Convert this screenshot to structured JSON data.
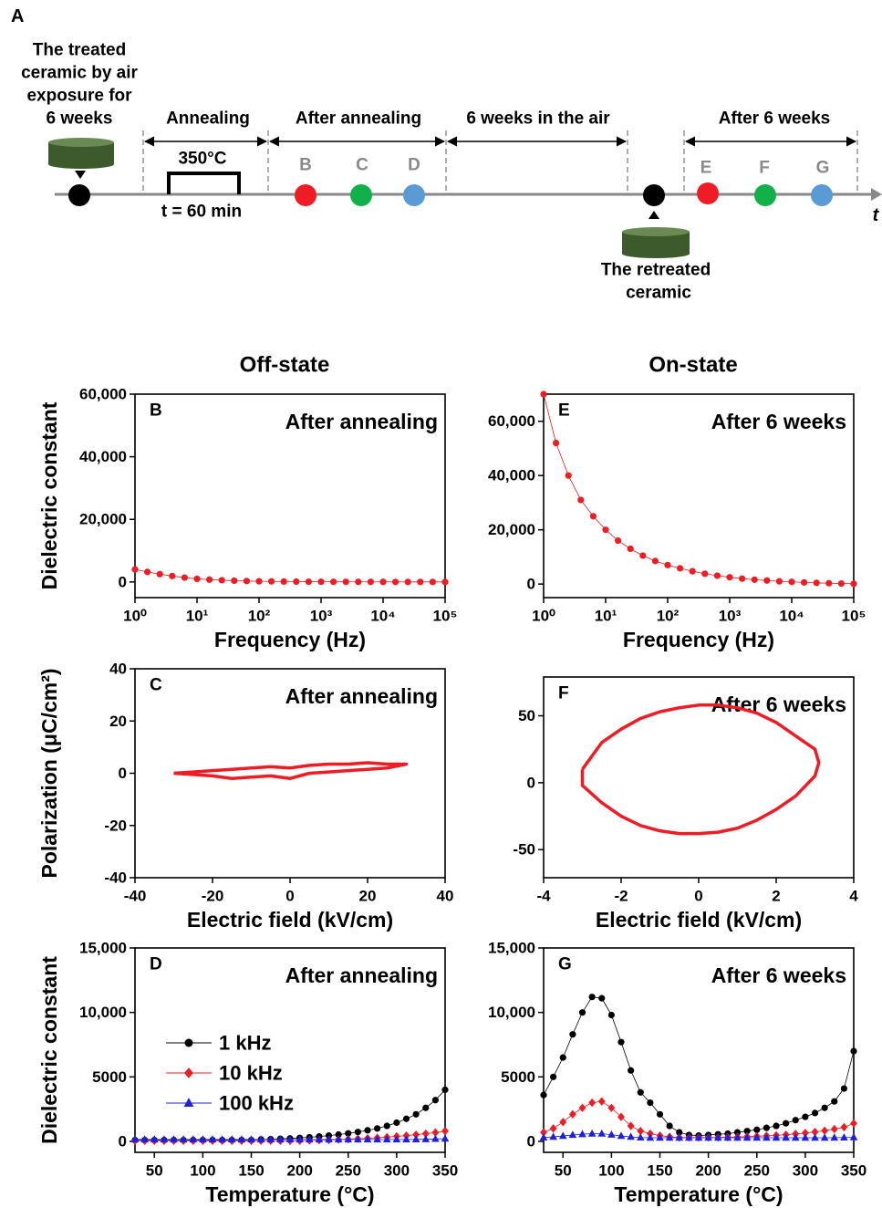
{
  "diagram": {
    "label": "A",
    "initial_sample": [
      "The treated",
      "ceramic by air",
      "exposure for",
      "6 weeks"
    ],
    "stages": [
      "Annealing",
      "After annealing",
      "6 weeks in the air",
      "After 6 weeks"
    ],
    "annealing_temperature": "350°C",
    "annealing_time": "t = 60 min",
    "points": [
      "B",
      "C",
      "D",
      "E",
      "F",
      "G"
    ],
    "time_axis": "t",
    "retreated_sample": [
      "The retreated",
      "ceramic"
    ]
  },
  "columns": [
    "Off-state",
    "On-state"
  ],
  "chart_data": [
    {
      "type": "line",
      "panel": "B",
      "title": "After annealing",
      "xlabel": "Frequency (Hz)",
      "ylabel": "Dielectric constant",
      "xlog": true,
      "xlim": [
        1,
        100000
      ],
      "ylim": [
        -5000,
        60000
      ],
      "xticks": [
        {
          "value": 1,
          "label": "10⁰"
        },
        {
          "value": 10,
          "label": "10¹"
        },
        {
          "value": 100,
          "label": "10²"
        },
        {
          "value": 1000,
          "label": "10³"
        },
        {
          "value": 10000,
          "label": "10⁴"
        },
        {
          "value": 100000,
          "label": "10⁵"
        }
      ],
      "yticks": [
        0,
        {
          "value": 20000,
          "label": "20,000"
        },
        {
          "value": 40000,
          "label": "40,000"
        },
        {
          "value": 60000,
          "label": "60,000"
        }
      ],
      "x": [
        1,
        1.585,
        2.512,
        3.981,
        6.31,
        10,
        15.85,
        25.12,
        39.81,
        63.1,
        100,
        158.5,
        251.2,
        398.1,
        631,
        1000,
        1585,
        2512,
        3981,
        6310,
        10000,
        15850,
        25120,
        39810,
        63100,
        100000
      ],
      "series": [
        {
          "color": "#ee1c24",
          "marker": "circle",
          "line_width": 0.8,
          "values": [
            4000,
            3200,
            2500,
            1900,
            1400,
            1000,
            750,
            550,
            400,
            300,
            220,
            170,
            130,
            100,
            80,
            60,
            50,
            40,
            30,
            25,
            20,
            15,
            10,
            10,
            5,
            5
          ]
        }
      ]
    },
    {
      "type": "line",
      "panel": "C",
      "title": "After annealing",
      "xlabel": "Electric field (kV/cm)",
      "ylabel": "Polarization (μC/cm²)",
      "xlim": [
        -40,
        40
      ],
      "ylim": [
        -40,
        40
      ],
      "xticks": [
        -40,
        -20,
        0,
        20,
        40
      ],
      "yticks": [
        -40,
        -20,
        0,
        20,
        40
      ],
      "x": [
        -30,
        -25,
        -20,
        -15,
        -10,
        -5,
        0,
        5,
        10,
        15,
        20,
        25,
        30,
        25,
        20,
        15,
        10,
        5,
        0,
        -5,
        -10,
        -15,
        -20,
        -25,
        -30
      ],
      "series": [
        {
          "color": "#ee1c24",
          "marker": "none",
          "line_width": 3.5,
          "values": [
            0,
            0.5,
            1,
            1.5,
            2,
            2.5,
            2,
            3,
            3.5,
            3.5,
            4,
            3.5,
            3.5,
            2,
            1.5,
            1,
            0.5,
            0,
            -2,
            -1,
            -1.5,
            -2,
            -1,
            -0.5,
            0
          ]
        }
      ]
    },
    {
      "type": "line",
      "panel": "D",
      "title": "After annealing",
      "xlabel": "Temperature (°C)",
      "ylabel": "Dielectric constant",
      "legend": true,
      "xlim": [
        30,
        350
      ],
      "ylim": [
        -850,
        15000
      ],
      "xticks": [
        50,
        100,
        150,
        200,
        250,
        300,
        350
      ],
      "yticks": [
        0,
        5000,
        {
          "value": 10000,
          "label": "10,000"
        },
        {
          "value": 15000,
          "label": "15,000"
        }
      ],
      "x": [
        30,
        40,
        50,
        60,
        70,
        80,
        90,
        100,
        110,
        120,
        130,
        140,
        150,
        160,
        170,
        180,
        190,
        200,
        210,
        220,
        230,
        240,
        250,
        260,
        270,
        280,
        290,
        300,
        310,
        320,
        330,
        340,
        350
      ],
      "series": [
        {
          "name": "1 kHz",
          "color": "#000000",
          "marker": "circle",
          "line_width": 0.8,
          "values": [
            100,
            100,
            100,
            100,
            100,
            100,
            100,
            100,
            100,
            100,
            100,
            100,
            100,
            150,
            170,
            200,
            230,
            270,
            320,
            380,
            450,
            530,
            620,
            730,
            860,
            1000,
            1200,
            1450,
            1750,
            2100,
            2600,
            3200,
            4000
          ]
        },
        {
          "name": "10 kHz",
          "color": "#ee1c24",
          "marker": "diamond",
          "line_width": 0.8,
          "values": [
            50,
            50,
            50,
            50,
            50,
            50,
            50,
            50,
            50,
            50,
            50,
            50,
            50,
            50,
            50,
            50,
            50,
            50,
            70,
            90,
            110,
            140,
            170,
            200,
            240,
            280,
            330,
            390,
            450,
            520,
            600,
            690,
            800
          ]
        },
        {
          "name": "100 kHz",
          "color": "#1f1fe0",
          "marker": "triangle",
          "line_width": 0.8,
          "values": [
            150,
            150,
            150,
            150,
            150,
            150,
            150,
            150,
            150,
            150,
            150,
            150,
            150,
            150,
            150,
            150,
            150,
            150,
            150,
            150,
            150,
            150,
            150,
            150,
            150,
            150,
            150,
            150,
            150,
            160,
            170,
            190,
            210
          ]
        }
      ]
    },
    {
      "type": "line",
      "panel": "E",
      "title": "After 6 weeks",
      "xlabel": "Frequency (Hz)",
      "xlog": true,
      "xlim": [
        1,
        100000
      ],
      "ylim": [
        -5000,
        70000
      ],
      "xticks": [
        {
          "value": 1,
          "label": "10⁰"
        },
        {
          "value": 10,
          "label": "10¹"
        },
        {
          "value": 100,
          "label": "10²"
        },
        {
          "value": 1000,
          "label": "10³"
        },
        {
          "value": 10000,
          "label": "10⁴"
        },
        {
          "value": 100000,
          "label": "10⁵"
        }
      ],
      "yticks": [
        0,
        {
          "value": 20000,
          "label": "20,000"
        },
        {
          "value": 40000,
          "label": "40,000"
        },
        {
          "value": 60000,
          "label": "60,000"
        }
      ],
      "x": [
        1,
        1.585,
        2.512,
        3.981,
        6.31,
        10,
        15.85,
        25.12,
        39.81,
        63.1,
        100,
        158.5,
        251.2,
        398.1,
        631,
        1000,
        1585,
        2512,
        3981,
        6310,
        10000,
        15850,
        25120,
        39810,
        63100,
        100000
      ],
      "series": [
        {
          "color": "#ee1c24",
          "marker": "circle",
          "line_width": 0.8,
          "values": [
            70000,
            52000,
            40000,
            31000,
            25000,
            20000,
            16000,
            13000,
            10500,
            8500,
            7000,
            5800,
            4700,
            3800,
            3100,
            2500,
            2000,
            1600,
            1300,
            1000,
            800,
            600,
            450,
            300,
            200,
            100
          ]
        }
      ]
    },
    {
      "type": "line",
      "panel": "F",
      "title": "After 6 weeks",
      "xlabel": "Electric field (kV/cm)",
      "xlim": [
        -4,
        4
      ],
      "ylim": [
        -71,
        79
      ],
      "xticks": [
        -4,
        -2,
        0,
        2,
        4
      ],
      "yticks": [
        -50,
        0,
        50
      ],
      "x": [
        -3,
        -2.5,
        -2,
        -1.5,
        -1,
        -0.5,
        0,
        0.5,
        1,
        1.5,
        2,
        2.5,
        3,
        3.1,
        3,
        2.5,
        2,
        1.5,
        1,
        0.5,
        0,
        -0.5,
        -1,
        -1.5,
        -2,
        -2.5,
        -3,
        -3
      ],
      "series": [
        {
          "color": "#ee1c24",
          "marker": "none",
          "line_width": 3.5,
          "values": [
            10,
            30,
            40,
            48,
            53,
            56,
            58,
            58,
            56,
            52,
            45,
            35,
            25,
            15,
            5,
            -10,
            -20,
            -28,
            -34,
            -37,
            -38,
            -38,
            -36,
            -32,
            -25,
            -15,
            -2,
            10
          ]
        }
      ]
    },
    {
      "type": "line",
      "panel": "G",
      "title": "After 6 weeks",
      "xlabel": "Temperature (°C)",
      "legend": false,
      "xlim": [
        30,
        350
      ],
      "ylim": [
        -850,
        15000
      ],
      "xticks": [
        50,
        100,
        150,
        200,
        250,
        300,
        350
      ],
      "yticks": [
        0,
        5000,
        {
          "value": 10000,
          "label": "10,000"
        },
        {
          "value": 15000,
          "label": "15,000"
        }
      ],
      "x": [
        30,
        40,
        50,
        60,
        70,
        80,
        90,
        100,
        110,
        120,
        130,
        140,
        150,
        160,
        170,
        180,
        190,
        200,
        210,
        220,
        230,
        240,
        250,
        260,
        270,
        280,
        290,
        300,
        310,
        320,
        330,
        340,
        350
      ],
      "series": [
        {
          "name": "1 kHz",
          "color": "#000000",
          "marker": "circle",
          "line_width": 0.8,
          "values": [
            3600,
            5000,
            6500,
            8300,
            10000,
            11200,
            11100,
            9800,
            7700,
            5500,
            3800,
            3000,
            2100,
            1200,
            700,
            500,
            450,
            500,
            550,
            600,
            700,
            800,
            900,
            1050,
            1200,
            1400,
            1650,
            1900,
            2200,
            2600,
            3100,
            4100,
            7000
          ]
        },
        {
          "name": "10 kHz",
          "color": "#ee1c24",
          "marker": "diamond",
          "line_width": 0.8,
          "values": [
            700,
            1000,
            1500,
            2100,
            2600,
            3000,
            3100,
            2600,
            1900,
            1200,
            800,
            600,
            450,
            350,
            300,
            300,
            300,
            300,
            300,
            320,
            340,
            370,
            400,
            430,
            470,
            520,
            580,
            650,
            730,
            830,
            950,
            1100,
            1400
          ]
        },
        {
          "name": "100 kHz",
          "color": "#1f1fe0",
          "marker": "triangle",
          "line_width": 0.8,
          "values": [
            300,
            350,
            420,
            500,
            560,
            600,
            600,
            520,
            420,
            350,
            300,
            280,
            280,
            280,
            280,
            280,
            280,
            280,
            280,
            280,
            280,
            280,
            280,
            280,
            280,
            280,
            280,
            280,
            280,
            280,
            290,
            300,
            320
          ]
        }
      ]
    }
  ]
}
